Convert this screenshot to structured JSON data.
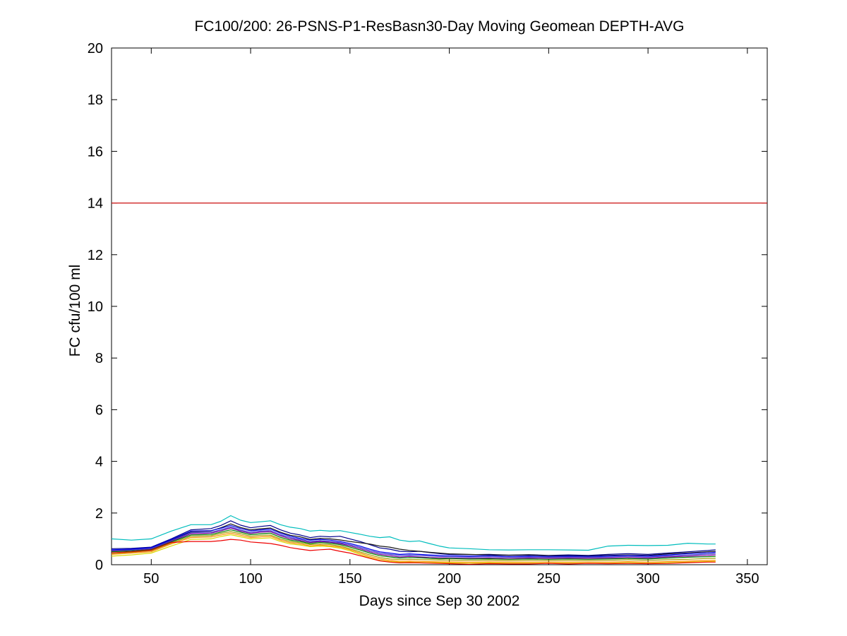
{
  "figure": {
    "title": "FC100/200: 26-PSNS-P1-ResBasn30-Day Moving Geomean DEPTH-AVG",
    "xlabel": "Days since Sep 30 2002",
    "ylabel": "FC cfu/100 ml",
    "background_color": "#ffffff",
    "axis_color": "#000000"
  },
  "chart_data": {
    "type": "line",
    "title": "FC100/200: 26-PSNS-P1-ResBasn30-Day Moving Geomean DEPTH-AVG",
    "xlabel": "Days since Sep 30 2002",
    "ylabel": "FC cfu/100 ml",
    "xlim": [
      30,
      360
    ],
    "ylim": [
      0,
      20
    ],
    "xticks": [
      50,
      100,
      150,
      200,
      250,
      300,
      350
    ],
    "yticks": [
      0,
      2,
      4,
      6,
      8,
      10,
      12,
      14,
      16,
      18,
      20
    ],
    "grid": false,
    "legend": "none",
    "threshold_line": {
      "y": 14,
      "color": "#cc1111"
    },
    "x": [
      30,
      40,
      50,
      60,
      70,
      80,
      85,
      90,
      95,
      100,
      105,
      110,
      115,
      120,
      125,
      130,
      135,
      140,
      145,
      150,
      155,
      160,
      165,
      170,
      175,
      180,
      185,
      190,
      195,
      200,
      210,
      220,
      230,
      240,
      250,
      260,
      270,
      280,
      290,
      300,
      310,
      320,
      330,
      334
    ],
    "series": [
      {
        "name": "cyan-line",
        "color": "#00bdbd",
        "values": [
          1.0,
          0.95,
          1.0,
          1.3,
          1.55,
          1.55,
          1.68,
          1.9,
          1.72,
          1.63,
          1.66,
          1.7,
          1.55,
          1.45,
          1.4,
          1.3,
          1.33,
          1.3,
          1.32,
          1.25,
          1.18,
          1.1,
          1.05,
          1.08,
          0.95,
          0.9,
          0.92,
          0.82,
          0.72,
          0.65,
          0.62,
          0.58,
          0.57,
          0.58,
          0.58,
          0.57,
          0.56,
          0.72,
          0.75,
          0.74,
          0.75,
          0.83,
          0.8,
          0.8
        ]
      },
      {
        "name": "dark-blue-line",
        "color": "#00008b",
        "values": [
          0.62,
          0.63,
          0.68,
          1.0,
          1.35,
          1.4,
          1.52,
          1.7,
          1.53,
          1.43,
          1.48,
          1.52,
          1.35,
          1.22,
          1.15,
          1.05,
          1.1,
          1.08,
          1.1,
          1.0,
          0.9,
          0.78,
          0.65,
          0.6,
          0.52,
          0.5,
          0.52,
          0.47,
          0.43,
          0.4,
          0.39,
          0.4,
          0.37,
          0.39,
          0.36,
          0.38,
          0.36,
          0.4,
          0.43,
          0.4,
          0.45,
          0.5,
          0.55,
          0.58
        ]
      },
      {
        "name": "black-line",
        "color": "#1a1a1a",
        "values": [
          0.56,
          0.58,
          0.64,
          0.95,
          1.28,
          1.31,
          1.43,
          1.58,
          1.44,
          1.35,
          1.39,
          1.42,
          1.26,
          1.14,
          1.08,
          0.98,
          1.02,
          1.0,
          0.96,
          0.9,
          0.85,
          0.8,
          0.72,
          0.68,
          0.6,
          0.55,
          0.52,
          0.48,
          0.45,
          0.42,
          0.4,
          0.38,
          0.37,
          0.38,
          0.35,
          0.35,
          0.34,
          0.36,
          0.38,
          0.36,
          0.42,
          0.46,
          0.5,
          0.52
        ]
      },
      {
        "name": "blue-line",
        "color": "#0000ee",
        "values": [
          0.58,
          0.6,
          0.66,
          0.97,
          1.3,
          1.32,
          1.41,
          1.52,
          1.4,
          1.31,
          1.35,
          1.38,
          1.22,
          1.1,
          1.02,
          0.95,
          0.98,
          0.95,
          0.9,
          0.82,
          0.72,
          0.6,
          0.5,
          0.45,
          0.4,
          0.42,
          0.4,
          0.38,
          0.36,
          0.35,
          0.33,
          0.35,
          0.32,
          0.34,
          0.32,
          0.33,
          0.32,
          0.34,
          0.36,
          0.34,
          0.38,
          0.43,
          0.46,
          0.48
        ]
      },
      {
        "name": "blue2-line",
        "color": "#3c3ccd",
        "values": [
          0.55,
          0.57,
          0.63,
          0.93,
          1.24,
          1.26,
          1.35,
          1.46,
          1.34,
          1.25,
          1.3,
          1.32,
          1.16,
          1.05,
          0.98,
          0.9,
          0.93,
          0.9,
          0.85,
          0.77,
          0.67,
          0.55,
          0.45,
          0.4,
          0.36,
          0.37,
          0.36,
          0.34,
          0.32,
          0.31,
          0.3,
          0.31,
          0.29,
          0.3,
          0.29,
          0.3,
          0.29,
          0.3,
          0.32,
          0.3,
          0.34,
          0.38,
          0.41,
          0.43
        ]
      },
      {
        "name": "purple-line",
        "color": "#7d00a0",
        "values": [
          0.52,
          0.54,
          0.6,
          0.9,
          1.2,
          1.22,
          1.31,
          1.42,
          1.3,
          1.21,
          1.26,
          1.28,
          1.12,
          1.0,
          0.94,
          0.86,
          0.9,
          0.87,
          0.82,
          0.73,
          0.62,
          0.5,
          0.4,
          0.35,
          0.3,
          0.32,
          0.3,
          0.28,
          0.27,
          0.26,
          0.25,
          0.26,
          0.24,
          0.26,
          0.25,
          0.26,
          0.25,
          0.26,
          0.28,
          0.26,
          0.3,
          0.33,
          0.36,
          0.38
        ]
      },
      {
        "name": "green-line",
        "color": "#007d00",
        "values": [
          0.5,
          0.53,
          0.58,
          0.88,
          1.15,
          1.17,
          1.26,
          1.35,
          1.26,
          1.16,
          1.2,
          1.22,
          1.06,
          0.95,
          0.9,
          0.82,
          0.86,
          0.83,
          0.78,
          0.68,
          0.57,
          0.45,
          0.35,
          0.3,
          0.26,
          0.28,
          0.27,
          0.25,
          0.23,
          0.24,
          0.22,
          0.23,
          0.21,
          0.22,
          0.21,
          0.22,
          0.21,
          0.22,
          0.24,
          0.22,
          0.26,
          0.29,
          0.31,
          0.32
        ]
      },
      {
        "name": "olive-line",
        "color": "#9c9c00",
        "values": [
          0.44,
          0.48,
          0.54,
          0.84,
          1.1,
          1.12,
          1.21,
          1.28,
          1.2,
          1.1,
          1.14,
          1.15,
          1.0,
          0.9,
          0.85,
          0.78,
          0.8,
          0.78,
          0.72,
          0.62,
          0.5,
          0.38,
          0.28,
          0.22,
          0.2,
          0.21,
          0.2,
          0.19,
          0.18,
          0.18,
          0.17,
          0.18,
          0.16,
          0.17,
          0.16,
          0.17,
          0.16,
          0.17,
          0.19,
          0.17,
          0.19,
          0.21,
          0.24,
          0.25
        ]
      },
      {
        "name": "orange-line",
        "color": "#ff8c00",
        "values": [
          0.4,
          0.45,
          0.5,
          0.8,
          1.05,
          1.07,
          1.15,
          1.22,
          1.14,
          1.05,
          1.08,
          1.1,
          0.95,
          0.85,
          0.8,
          0.73,
          0.76,
          0.73,
          0.68,
          0.58,
          0.45,
          0.32,
          0.22,
          0.16,
          0.13,
          0.14,
          0.13,
          0.12,
          0.11,
          0.11,
          0.1,
          0.11,
          0.1,
          0.1,
          0.1,
          0.1,
          0.1,
          0.1,
          0.12,
          0.1,
          0.12,
          0.14,
          0.16,
          0.17
        ]
      },
      {
        "name": "yellow-line",
        "color": "#d9d900",
        "values": [
          0.33,
          0.38,
          0.45,
          0.72,
          0.98,
          1.0,
          1.09,
          1.16,
          1.08,
          1.0,
          1.02,
          1.04,
          0.9,
          0.8,
          0.76,
          0.7,
          0.72,
          0.7,
          0.64,
          0.54,
          0.4,
          0.27,
          0.17,
          0.12,
          0.1,
          0.1,
          0.09,
          0.08,
          0.08,
          0.07,
          0.06,
          0.07,
          0.06,
          0.06,
          0.06,
          0.06,
          0.06,
          0.06,
          0.08,
          0.06,
          0.08,
          0.1,
          0.12,
          0.13
        ]
      },
      {
        "name": "red-line",
        "color": "#ee0000",
        "values": [
          0.46,
          0.5,
          0.56,
          0.86,
          0.9,
          0.9,
          0.93,
          0.98,
          0.95,
          0.88,
          0.85,
          0.82,
          0.75,
          0.66,
          0.6,
          0.55,
          0.58,
          0.6,
          0.52,
          0.45,
          0.35,
          0.25,
          0.15,
          0.1,
          0.07,
          0.08,
          0.07,
          0.06,
          0.05,
          0.04,
          0.02,
          0.04,
          0.03,
          0.03,
          0.05,
          0.03,
          0.05,
          0.04,
          0.05,
          0.04,
          0.05,
          0.08,
          0.1,
          0.1
        ]
      }
    ]
  }
}
